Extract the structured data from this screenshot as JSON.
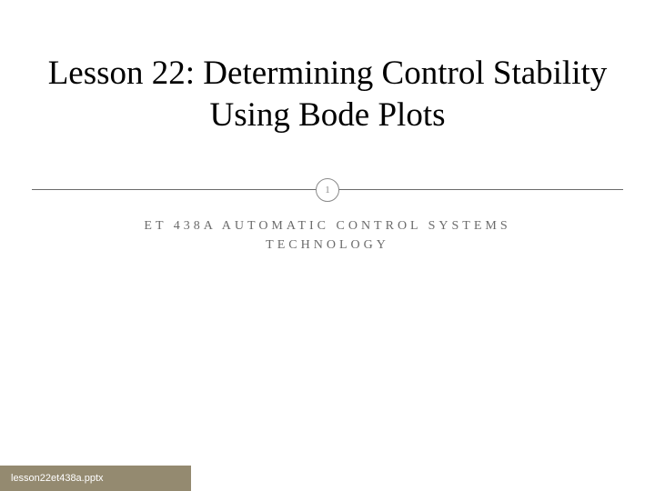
{
  "slide": {
    "title": "Lesson 22: Determining Control Stability Using Bode Plots",
    "title_color": "#000000",
    "title_fontsize": 37,
    "badge_number": "1",
    "badge_border_color": "#8a8a8a",
    "badge_text_color": "#8a8a8a",
    "divider_color": "#6b6b6b",
    "subtitle_line1": "ET 438A AUTOMATIC CONTROL SYSTEMS",
    "subtitle_line2": "TECHNOLOGY",
    "subtitle_color": "#6b6b6b",
    "subtitle_fontsize": 14,
    "subtitle_letter_spacing": 4,
    "footer_text": "lesson22et438a.pptx",
    "footer_bg": "#948a70",
    "footer_text_color": "#ffffff",
    "background_color": "#ffffff"
  }
}
